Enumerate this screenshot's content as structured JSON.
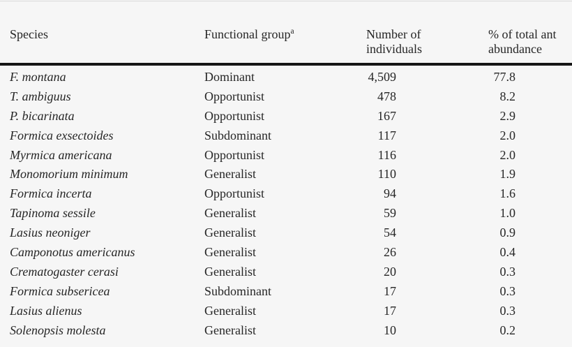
{
  "colors": {
    "background": "#f6f6f6",
    "text": "#262626",
    "header_rule": "#161616",
    "top_line": "#d9d9d9"
  },
  "table": {
    "columns": [
      {
        "label": "Species"
      },
      {
        "label": "Functional group",
        "superscript": "a"
      },
      {
        "line1": "Number of",
        "line2": "individuals"
      },
      {
        "line1": "% of total ant",
        "line2": "abundance"
      }
    ],
    "rows": [
      {
        "species": "F. montana",
        "group": "Dominant",
        "count": "4,509",
        "percent": "77.8"
      },
      {
        "species": "T. ambiguus",
        "group": "Opportunist",
        "count": "478",
        "percent": "8.2"
      },
      {
        "species": "P. bicarinata",
        "group": "Opportunist",
        "count": "167",
        "percent": "2.9"
      },
      {
        "species": "Formica exsectoides",
        "group": "Subdominant",
        "count": "117",
        "percent": "2.0"
      },
      {
        "species": "Myrmica americana",
        "group": "Opportunist",
        "count": "116",
        "percent": "2.0"
      },
      {
        "species": "Monomorium minimum",
        "group": "Generalist",
        "count": "110",
        "percent": "1.9"
      },
      {
        "species": "Formica incerta",
        "group": "Opportunist",
        "count": "94",
        "percent": "1.6"
      },
      {
        "species": "Tapinoma sessile",
        "group": "Generalist",
        "count": "59",
        "percent": "1.0"
      },
      {
        "species": "Lasius neoniger",
        "group": "Generalist",
        "count": "54",
        "percent": "0.9"
      },
      {
        "species": "Camponotus americanus",
        "group": "Generalist",
        "count": "26",
        "percent": "0.4"
      },
      {
        "species": "Crematogaster cerasi",
        "group": "Generalist",
        "count": "20",
        "percent": "0.3"
      },
      {
        "species": "Formica subsericea",
        "group": "Subdominant",
        "count": "17",
        "percent": "0.3"
      },
      {
        "species": "Lasius alienus",
        "group": "Generalist",
        "count": "17",
        "percent": "0.3"
      },
      {
        "species": "Solenopsis molesta",
        "group": "Generalist",
        "count": "10",
        "percent": "0.2"
      }
    ]
  }
}
